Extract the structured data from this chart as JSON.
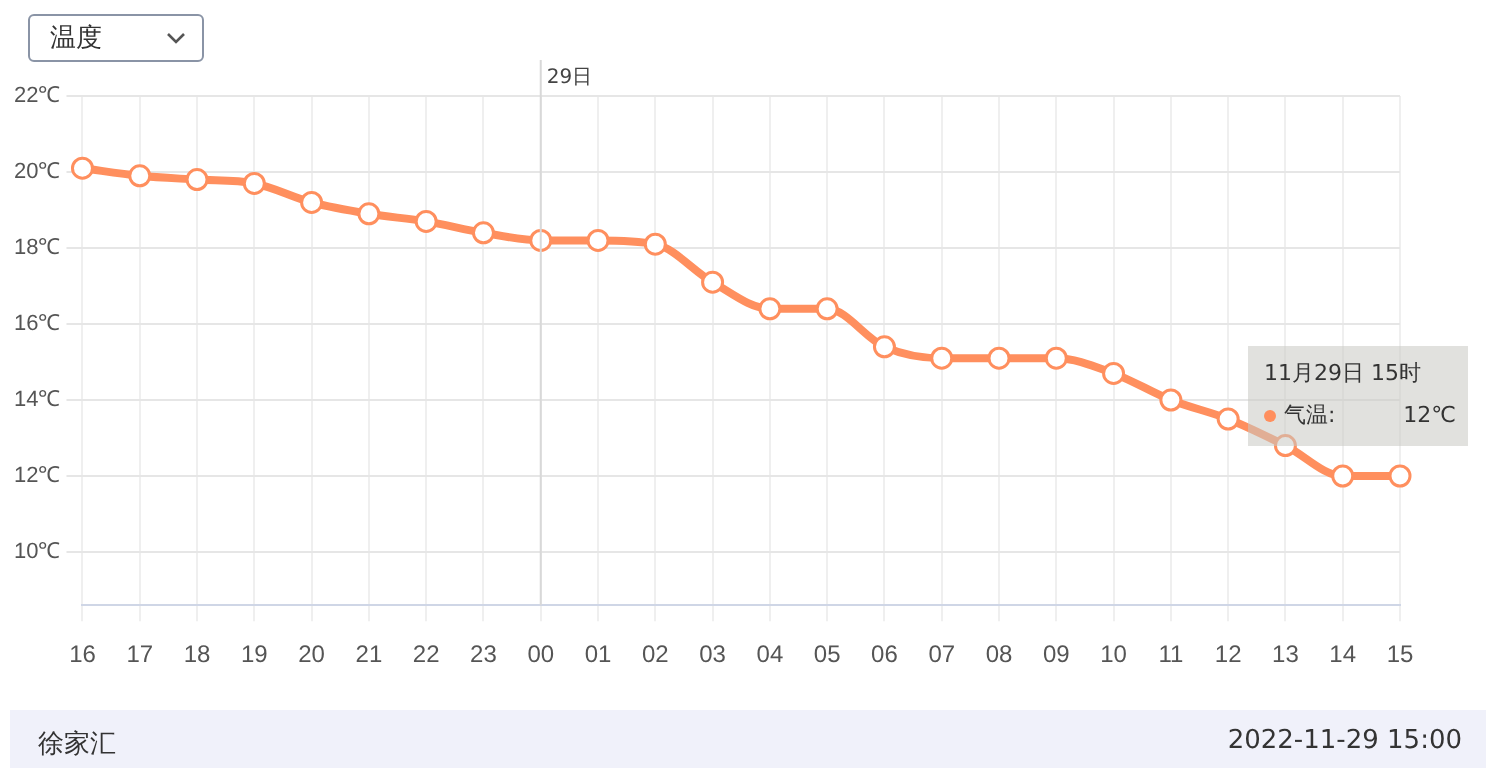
{
  "chart_data": {
    "type": "line",
    "categories": [
      "16",
      "17",
      "18",
      "19",
      "20",
      "21",
      "22",
      "23",
      "00",
      "01",
      "02",
      "03",
      "04",
      "05",
      "06",
      "07",
      "08",
      "09",
      "10",
      "11",
      "12",
      "13",
      "14",
      "15"
    ],
    "series": [
      {
        "color": "#ff8f5e",
        "values": [
          20.1,
          19.9,
          19.8,
          19.7,
          19.2,
          18.9,
          18.7,
          18.4,
          18.2,
          18.2,
          18.1,
          17.1,
          16.4,
          16.4,
          15.4,
          15.1,
          15.1,
          15.1,
          14.7,
          14.0,
          13.5,
          12.8,
          12.0,
          12.0
        ]
      }
    ],
    "ylim": [
      8.6,
      22
    ],
    "yticks": [
      {
        "value": 10,
        "label": "10℃"
      },
      {
        "value": 12,
        "label": "12℃"
      },
      {
        "value": 14,
        "label": "14℃"
      },
      {
        "value": 16,
        "label": "16℃"
      },
      {
        "value": 18,
        "label": "18℃"
      },
      {
        "value": 20,
        "label": "20℃"
      },
      {
        "value": 22,
        "label": "22℃"
      }
    ],
    "grid": true,
    "marker": "circle",
    "line_style": "solid",
    "legend": false,
    "ref_lines": [
      {
        "axis": "x",
        "value": "00",
        "label": "29日"
      }
    ],
    "annotations": [
      "温度",
      "11月29日 15时",
      "气温:",
      "12℃",
      "徐家汇",
      "2022-11-29 15:00"
    ]
  }
}
